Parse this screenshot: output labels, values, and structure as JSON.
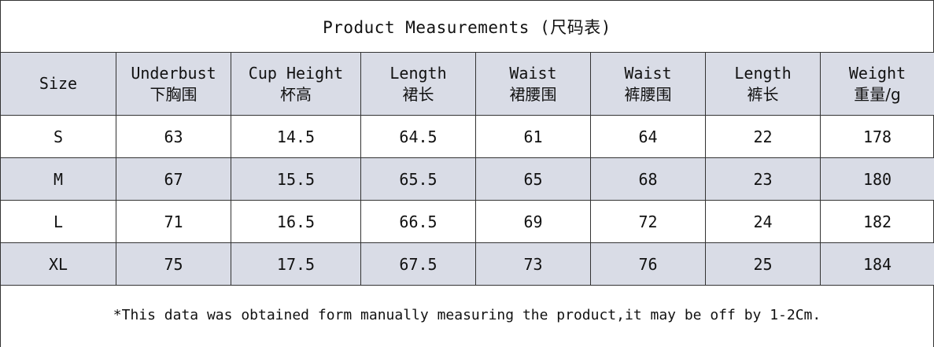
{
  "title": "Product Measurements (尺码表)",
  "table": {
    "headers": [
      {
        "en": "Size",
        "cn": ""
      },
      {
        "en": "Underbust",
        "cn": "下胸围"
      },
      {
        "en": "Cup Height",
        "cn": "杯高"
      },
      {
        "en": "Length",
        "cn": "裙长"
      },
      {
        "en": "Waist",
        "cn": "裙腰围"
      },
      {
        "en": "Waist",
        "cn": "裤腰围"
      },
      {
        "en": "Length",
        "cn": "裤长"
      },
      {
        "en": "Weight",
        "cn": "重量/g"
      }
    ],
    "rows": [
      [
        "S",
        "63",
        "14.5",
        "64.5",
        "61",
        "64",
        "22",
        "178"
      ],
      [
        "M",
        "67",
        "15.5",
        "65.5",
        "65",
        "68",
        "23",
        "180"
      ],
      [
        "L",
        "71",
        "16.5",
        "66.5",
        "69",
        "72",
        "24",
        "182"
      ],
      [
        "XL",
        "75",
        "17.5",
        "67.5",
        "73",
        "76",
        "25",
        "184"
      ]
    ]
  },
  "note": "*This data was obtained form manually measuring the product,it may be off by 1-2Cm."
}
